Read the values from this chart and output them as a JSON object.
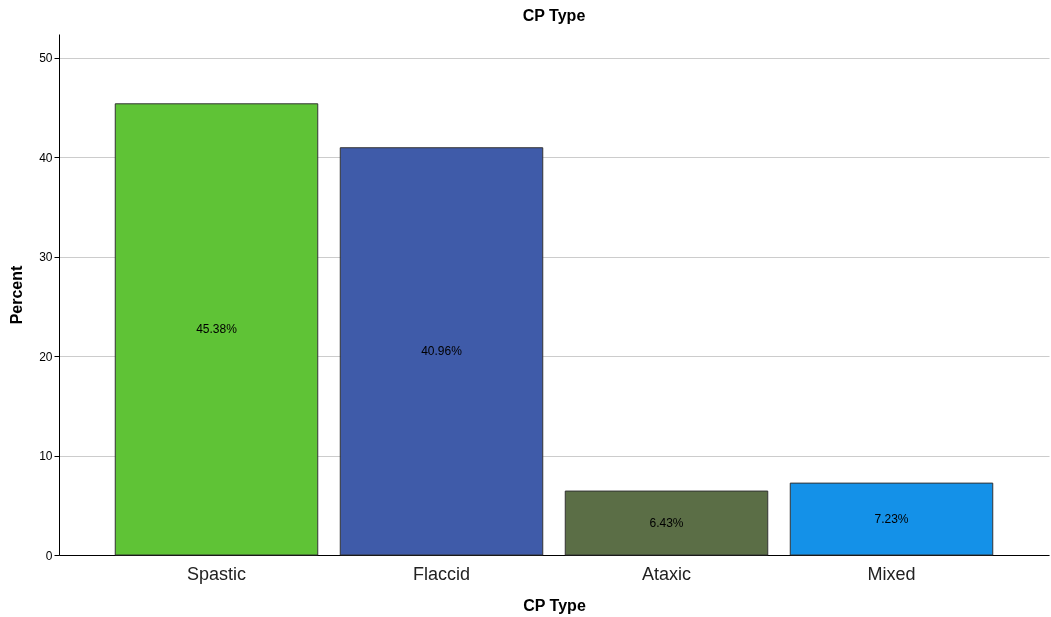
{
  "chart_data": {
    "type": "bar",
    "title": "CP Type",
    "xlabel": "CP Type",
    "ylabel": "Percent",
    "categories": [
      "Spastic",
      "Flaccid",
      "Ataxic",
      "Mixed"
    ],
    "values": [
      45.38,
      40.96,
      6.43,
      7.23
    ],
    "colors": [
      "#5fc336",
      "#3f5ba9",
      "#5b6e46",
      "#1491e8"
    ],
    "value_labels": [
      "45.38%",
      "40.96%",
      "6.43%",
      "7.23%"
    ],
    "ylim": [
      0,
      52.4
    ],
    "yticks": [
      0,
      10,
      20,
      30,
      40,
      50
    ],
    "grid": "y"
  }
}
